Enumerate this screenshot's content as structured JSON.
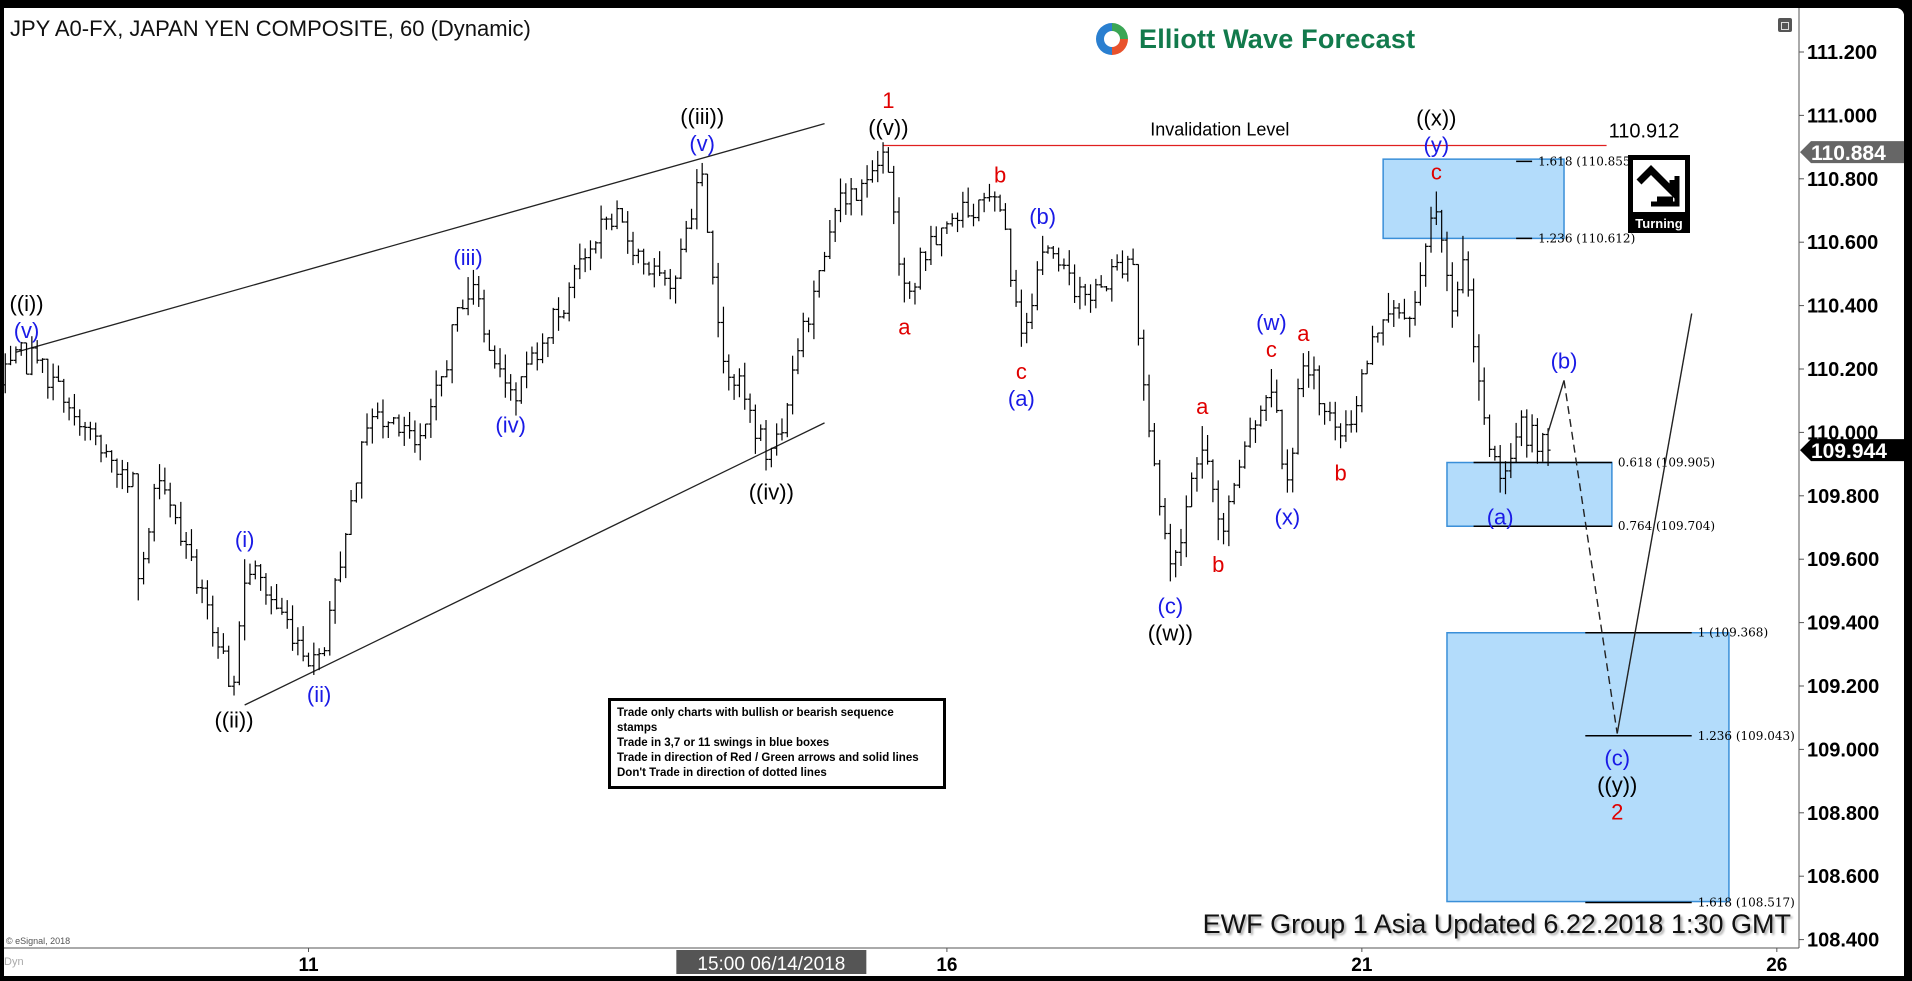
{
  "title": "JPY A0-FX, JAPAN YEN COMPOSITE, 60 (Dynamic)",
  "logo": {
    "text": "Elliott Wave Forecast",
    "colors": [
      "#3aa655",
      "#e8522c",
      "#2a7fd0",
      "#127a4c"
    ]
  },
  "footer": "EWF Group 1 Asia Updated 6.22.2018 1:30 GMT",
  "copyright": "© eSignal, 2018",
  "dyn_label": "Dyn",
  "info_box": [
    "Trade only charts with bullish or bearish sequence stamps",
    "Trade in 3,7 or 11 swings in blue boxes",
    "Trade in direction of Red / Green arrows and solid lines",
    "Don't Trade in direction of dotted lines"
  ],
  "turning_stamp": {
    "label": "Turning",
    "icon": "turning-down-arrow-icon"
  },
  "chart_data": {
    "type": "ohlc-bar",
    "interval": "60",
    "y_axis": {
      "min": 108.4,
      "max": 111.2,
      "ticks": [
        "111.200",
        "111.000",
        "110.800",
        "110.600",
        "110.400",
        "110.200",
        "110.000",
        "109.800",
        "109.600",
        "109.400",
        "109.200",
        "109.000",
        "108.800",
        "108.600",
        "108.400"
      ]
    },
    "x_axis": {
      "ticks": [
        {
          "t": "2018-06-11 00:00",
          "label": "11"
        },
        {
          "t": "2018-06-16 00:00",
          "label": "16"
        },
        {
          "t": "2018-06-21 00:00",
          "label": "21"
        },
        {
          "t": "2018-06-26 00:00",
          "label": "26"
        }
      ],
      "cursor": {
        "t": "2018-06-14 15:00",
        "label": "15:00 06/14/2018"
      }
    },
    "price_tags": [
      {
        "value": "110.884",
        "color": "#666666"
      },
      {
        "value": "109.944",
        "color": "#000000"
      }
    ],
    "colors": {
      "red": "#e00000",
      "blue": "#1a1ae6",
      "black": "#000000",
      "box_fill": "#b3dcfb",
      "box_stroke": "#3a8fd8"
    },
    "pivots": [
      {
        "t": "2018-06-06 20:00",
        "p": 110.15,
        "type": "start",
        "labels": []
      },
      {
        "t": "2018-06-07 01:00",
        "p": 110.26,
        "type": "high",
        "labels": [
          [
            "((i))",
            "black"
          ],
          [
            "(v)",
            "blue"
          ]
        ]
      },
      {
        "t": "2018-06-07 21:00",
        "p": 109.83,
        "type": "low",
        "labels": []
      },
      {
        "t": "2018-06-07 22:00",
        "p": 109.47,
        "type": "low",
        "labels": []
      },
      {
        "t": "2018-06-08 02:00",
        "p": 109.9,
        "type": "high",
        "labels": []
      },
      {
        "t": "2018-06-08 16:00",
        "p": 109.17,
        "type": "low",
        "labels": [
          [
            "((ii))",
            "black"
          ]
        ]
      },
      {
        "t": "2018-06-08 18:00",
        "p": 109.6,
        "type": "high",
        "labels": [
          [
            "(i)",
            "blue"
          ]
        ]
      },
      {
        "t": "2018-06-11 02:00",
        "p": 109.25,
        "type": "low",
        "labels": [
          [
            "(ii)",
            "blue"
          ]
        ]
      },
      {
        "t": "2018-06-11 11:00",
        "p": 110.06,
        "type": "high",
        "labels": []
      },
      {
        "t": "2018-06-11 22:00",
        "p": 109.98,
        "type": "low",
        "labels": []
      },
      {
        "t": "2018-06-12 06:00",
        "p": 110.49,
        "type": "high",
        "labels": [
          [
            "(iii)",
            "blue"
          ]
        ]
      },
      {
        "t": "2018-06-12 14:00",
        "p": 110.1,
        "type": "low",
        "labels": [
          [
            "(iv)",
            "blue"
          ]
        ]
      },
      {
        "t": "2018-06-13 09:00",
        "p": 110.69,
        "type": "high",
        "labels": []
      },
      {
        "t": "2018-06-13 20:00",
        "p": 110.42,
        "type": "low",
        "labels": []
      },
      {
        "t": "2018-06-14 02:00",
        "p": 110.85,
        "type": "high",
        "labels": [
          [
            "((iii))",
            "black"
          ],
          [
            "(v)",
            "blue"
          ]
        ]
      },
      {
        "t": "2018-06-14 05:00",
        "p": 110.3,
        "type": "low",
        "labels": []
      },
      {
        "t": "2018-06-14 15:00",
        "p": 109.89,
        "type": "low",
        "labels": [
          [
            "((iv))",
            "black"
          ]
        ]
      },
      {
        "t": "2018-06-15 02:00",
        "p": 110.67,
        "type": "high",
        "labels": []
      },
      {
        "t": "2018-06-15 13:00",
        "p": 110.9,
        "type": "high",
        "labels": [
          [
            "1",
            "red"
          ],
          [
            "((v))",
            "black"
          ]
        ]
      },
      {
        "t": "2018-06-15 16:00",
        "p": 110.41,
        "type": "low",
        "labels": [
          [
            "a",
            "red"
          ]
        ]
      },
      {
        "t": "2018-06-15 22:00",
        "p": 110.65,
        "type": "high",
        "labels": []
      },
      {
        "t": "2018-06-18 04:00",
        "p": 110.75,
        "type": "high",
        "labels": [
          [
            "b",
            "red"
          ]
        ]
      },
      {
        "t": "2018-06-18 08:00",
        "p": 110.27,
        "type": "low",
        "labels": [
          [
            "c",
            "red"
          ],
          [
            "(a)",
            "blue"
          ]
        ]
      },
      {
        "t": "2018-06-18 12:00",
        "p": 110.62,
        "type": "high",
        "labels": [
          [
            "(b)",
            "blue"
          ]
        ]
      },
      {
        "t": "2018-06-18 20:00",
        "p": 110.4,
        "type": "low",
        "labels": []
      },
      {
        "t": "2018-06-19 05:00",
        "p": 110.58,
        "type": "high",
        "labels": []
      },
      {
        "t": "2018-06-19 07:00",
        "p": 110.1,
        "type": "low",
        "labels": []
      },
      {
        "t": "2018-06-19 12:00",
        "p": 109.53,
        "type": "low",
        "labels": [
          [
            "(c)",
            "blue"
          ],
          [
            "((w))",
            "black"
          ]
        ]
      },
      {
        "t": "2018-06-19 18:00",
        "p": 110.02,
        "type": "high",
        "labels": [
          [
            "a",
            "red"
          ]
        ]
      },
      {
        "t": "2018-06-19 21:00",
        "p": 109.66,
        "type": "low",
        "labels": [
          [
            "b",
            "red"
          ]
        ]
      },
      {
        "t": "2018-06-20 07:00",
        "p": 110.2,
        "type": "high",
        "labels": [
          [
            "(w)",
            "blue"
          ],
          [
            "c",
            "red"
          ]
        ]
      },
      {
        "t": "2018-06-20 10:00",
        "p": 109.81,
        "type": "low",
        "labels": [
          [
            "(x)",
            "blue"
          ]
        ]
      },
      {
        "t": "2018-06-20 13:00",
        "p": 110.25,
        "type": "high",
        "labels": [
          [
            "a",
            "red"
          ]
        ]
      },
      {
        "t": "2018-06-20 20:00",
        "p": 109.95,
        "type": "low",
        "labels": [
          [
            "b",
            "red"
          ]
        ]
      },
      {
        "t": "2018-06-21 05:00",
        "p": 110.44,
        "type": "high",
        "labels": []
      },
      {
        "t": "2018-06-21 09:00",
        "p": 110.3,
        "type": "low",
        "labels": []
      },
      {
        "t": "2018-06-21 14:00",
        "p": 110.76,
        "type": "high",
        "labels": [
          [
            "((x))",
            "black"
          ],
          [
            "(y)",
            "blue"
          ],
          [
            "c",
            "red"
          ]
        ]
      },
      {
        "t": "2018-06-21 17:00",
        "p": 110.33,
        "type": "low",
        "labels": []
      },
      {
        "t": "2018-06-21 19:00",
        "p": 110.62,
        "type": "high",
        "labels": []
      },
      {
        "t": "2018-06-21 22:00",
        "p": 110.1,
        "type": "low",
        "labels": []
      },
      {
        "t": "2018-06-22 02:00",
        "p": 109.81,
        "type": "low",
        "labels": [
          [
            "(a)",
            "blue"
          ]
        ]
      },
      {
        "t": "2018-06-22 05:00",
        "p": 110.03,
        "type": "high",
        "labels": []
      },
      {
        "t": "2018-06-22 11:00",
        "p": 109.944,
        "type": "last",
        "labels": []
      }
    ],
    "projection": [
      {
        "t": "2018-06-22 11:00",
        "p": 110.0,
        "style": "solid",
        "labels": []
      },
      {
        "t": "2018-06-22 14:00",
        "p": 110.164,
        "style": "dashed",
        "type": "high",
        "labels": [
          [
            "(b)",
            "blue"
          ]
        ]
      },
      {
        "t": "2018-06-24 18:00",
        "p": 109.05,
        "style": "solid",
        "type": "low",
        "labels": [
          [
            "(c)",
            "blue"
          ],
          [
            "((y))",
            "black"
          ],
          [
            "2",
            "red"
          ]
        ]
      },
      {
        "t": "2018-06-25 08:00",
        "p": 110.375,
        "labels": []
      }
    ],
    "trendlines": [
      {
        "from": {
          "t": "2018-06-06 23:00",
          "p": 110.253
        },
        "to": {
          "t": "2018-06-15 01:00",
          "p": 110.974
        }
      },
      {
        "from": {
          "t": "2018-06-08 18:00",
          "p": 109.14
        },
        "to": {
          "t": "2018-06-15 01:00",
          "p": 110.03
        }
      }
    ],
    "invalidation": {
      "label": "Invalidation Level",
      "value": "110.912",
      "p": 110.905,
      "from": "2018-06-15 12:00",
      "to": "2018-06-22 22:00",
      "color": "#e02020"
    },
    "boxes": [
      {
        "from": "2018-06-21 04:00",
        "to": "2018-06-22 14:00",
        "top": 110.862,
        "bottom": 110.612,
        "levels": [
          {
            "label": "1.618 (110.855)",
            "p": 110.855
          },
          {
            "label": "1.236 (110.612)",
            "p": 110.612
          }
        ],
        "line_from": "2018-06-22 05:00",
        "line_to": "2018-06-22 08:00"
      },
      {
        "from": "2018-06-21 16:00",
        "to": "2018-06-22 23:00",
        "top": 109.905,
        "bottom": 109.704,
        "levels": [
          {
            "label": "0.618 (109.905)",
            "p": 109.905
          },
          {
            "label": "0.764 (109.704)",
            "p": 109.704
          }
        ],
        "line_from": "2018-06-21 21:00",
        "line_to": "2018-06-22 23:00"
      },
      {
        "from": "2018-06-21 16:00",
        "to": "2018-06-25 15:00",
        "top": 109.368,
        "bottom": 108.52,
        "levels": [
          {
            "label": "1 (109.368)",
            "p": 109.368
          },
          {
            "label": "1.236 (109.043)",
            "p": 109.043
          },
          {
            "label": "1.618 (108.517)",
            "p": 108.517
          }
        ],
        "line_from": "2018-06-22 18:00",
        "line_to": "2018-06-25 08:00"
      }
    ]
  }
}
